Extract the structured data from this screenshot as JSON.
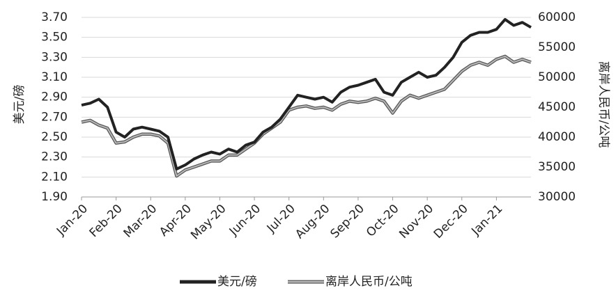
{
  "chart_data": {
    "type": "line",
    "y_label": "美元/磅",
    "y2_label": "离岸人民币/公吨",
    "categories": [
      "Jan-20",
      null,
      null,
      null,
      "Feb-20",
      null,
      null,
      null,
      "Mar-20",
      null,
      null,
      null,
      "Apr-20",
      null,
      null,
      null,
      "May-20",
      null,
      null,
      null,
      "Jun-20",
      null,
      null,
      null,
      "Jul-20",
      null,
      null,
      null,
      "Aug-20",
      null,
      null,
      null,
      "Sep-20",
      null,
      null,
      null,
      "Oct-20",
      null,
      null,
      null,
      "Nov-20",
      null,
      null,
      null,
      "Dec-20",
      null,
      null,
      null,
      "Jan-21",
      null,
      null,
      null,
      null
    ],
    "series": [
      {
        "name": "美元/磅",
        "color": "#222222",
        "axis": "y",
        "values": [
          2.82,
          2.84,
          2.88,
          2.8,
          2.55,
          2.5,
          2.58,
          2.6,
          2.58,
          2.56,
          2.5,
          2.18,
          2.22,
          2.28,
          2.32,
          2.35,
          2.33,
          2.38,
          2.35,
          2.42,
          2.45,
          2.55,
          2.6,
          2.68,
          2.8,
          2.92,
          2.9,
          2.88,
          2.9,
          2.85,
          2.95,
          3.0,
          3.02,
          3.05,
          3.08,
          2.95,
          2.92,
          3.05,
          3.1,
          3.15,
          3.1,
          3.12,
          3.2,
          3.3,
          3.45,
          3.52,
          3.55,
          3.55,
          3.58,
          3.68,
          3.62,
          3.65,
          3.6
        ]
      },
      {
        "name": "离岸人民币/公吨",
        "color": "#b8b8b8",
        "axis": "y2",
        "values": [
          42500,
          42800,
          42000,
          41500,
          39000,
          39200,
          40000,
          40500,
          40500,
          40200,
          39000,
          33500,
          34500,
          35000,
          35500,
          36000,
          36000,
          37000,
          37000,
          38000,
          39000,
          40500,
          41500,
          42500,
          44500,
          45000,
          45200,
          44800,
          45000,
          44500,
          45500,
          46000,
          45800,
          46000,
          46500,
          46000,
          44000,
          46000,
          47000,
          46500,
          47000,
          47500,
          48000,
          49500,
          51000,
          52000,
          52500,
          52000,
          53000,
          53500,
          52500,
          53000,
          52500
        ]
      }
    ],
    "ylim": [
      1.9,
      3.7
    ],
    "yticks": [
      {
        "value": 1.9,
        "label": "1.90"
      },
      {
        "value": 2.1,
        "label": "2.10"
      },
      {
        "value": 2.3,
        "label": "2.30"
      },
      {
        "value": 2.5,
        "label": "2.50"
      },
      {
        "value": 2.7,
        "label": "2.70"
      },
      {
        "value": 2.9,
        "label": "2.90"
      },
      {
        "value": 3.1,
        "label": "3.10"
      },
      {
        "value": 3.3,
        "label": "3.30"
      },
      {
        "value": 3.5,
        "label": "3.50"
      },
      {
        "value": 3.7,
        "label": "3.70"
      }
    ],
    "y2lim": [
      30000,
      60000
    ],
    "y2ticks": [
      30000,
      35000,
      40000,
      45000,
      50000,
      55000,
      60000
    ],
    "grid": true,
    "legend": "bottom"
  }
}
